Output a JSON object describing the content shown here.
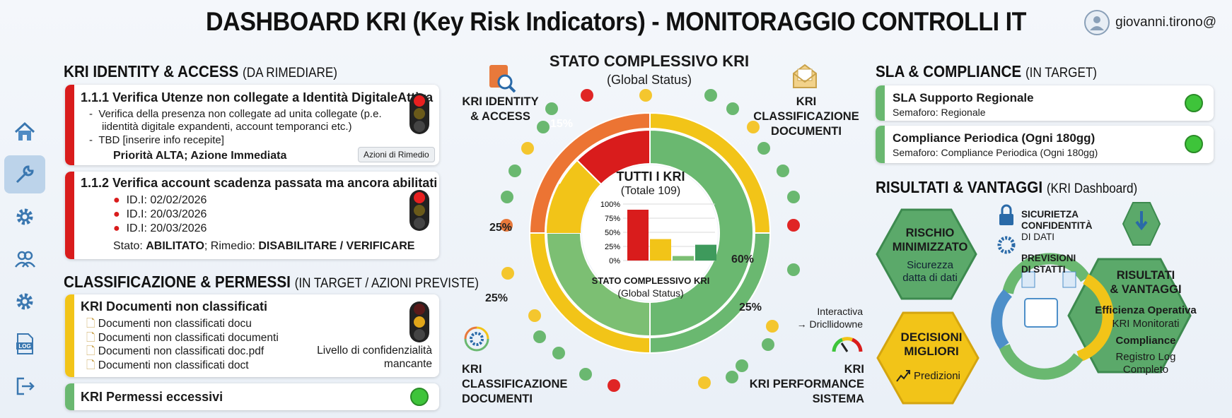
{
  "header": {
    "title": "DASHBOARD KRI (Key Risk Indicators) - MONITORAGGIO CONTROLLI IT",
    "user": "giovanni.tirono@"
  },
  "sidebar": {
    "items": [
      {
        "icon": "home-icon"
      },
      {
        "icon": "wrench-icon",
        "active": true
      },
      {
        "icon": "gear-icon"
      },
      {
        "icon": "users-icon"
      },
      {
        "icon": "gear-icon"
      },
      {
        "icon": "log-icon",
        "label": "LOG"
      },
      {
        "icon": "logout-icon"
      }
    ]
  },
  "identity": {
    "header": "KRI IDENTITY & ACCESS",
    "header_sub": "(DA RIMEDIARE)",
    "card1": {
      "title": "1.1.1 Verifica Utenze non collegate a Identità DigitaleAttiva",
      "b1a": "Verifica della presenza non collegate ad unita collegate (p.e.",
      "b1b": "iidentità digitale expandenti, account temporanci etc.)",
      "b2": "TBD [inserire info recepite]",
      "priority": "Priorità ALTA; Azione Immediata",
      "button": "Azioni di Rimedio"
    },
    "card2": {
      "title": "1.1.2 Verifica account scadenza passata ma ancora abilitati",
      "items": [
        "ID.I: 02/02/2026",
        "ID.I: 20/03/2026",
        "ID.I: 20/03/2026"
      ],
      "stato_label": "Stato: ",
      "stato_value": "ABILITATO",
      "rimedio_label": "; Rimedio: ",
      "rimedio_value": "DISABILITARE / VERIFICARE"
    }
  },
  "classificazione": {
    "header": "CLASSIFICAZIONE & PERMESSI",
    "header_sub": "(IN TARGET / AZIONI PREVISTE)",
    "card1": {
      "title": "KRI Documenti non classificati",
      "docs": [
        "Documenti non classificati docu",
        "Documenti non classificati documenti",
        "Documenti non classificati doc.pdf",
        "Documenti non classificati doct"
      ],
      "note1": "Livello di confidenzialità",
      "note2": "mancante"
    },
    "card2": {
      "title": "KRI Permessi eccessivi"
    }
  },
  "center": {
    "title": "STATO COMPLESSIVO KRI",
    "subtitle": "(Global Status)",
    "label_tl1": "KRI IDENTITY",
    "label_tl2": "& ACCESS",
    "label_tr1": "KRI CLASSIFICAZIONE",
    "label_tr2": "DOCUMENTI",
    "label_bl1": "KRI",
    "label_bl2": "CLASSIFICAZIONE",
    "label_bl3": "DOCUMENTI",
    "label_br1": "KRI",
    "label_br2": "KRI PERFORMANCE",
    "label_br3": "SISTEMA",
    "interactive1": "Interactiva",
    "interactive2": "→ Dricllidowne",
    "inner_title": "TUTTI I KRI",
    "inner_sub": "(Totale 109)",
    "inner_bottom": "STATO COMPLESSIVO KRI",
    "inner_bottom_sub": "(Global Status)",
    "pct_15": "15%",
    "pct_25a": "25%",
    "pct_25b": "25%",
    "pct_60": "60%",
    "pct_25c": "25%"
  },
  "chart_data": {
    "type": "bar",
    "categories": [
      "",
      "",
      "",
      ""
    ],
    "values": [
      90,
      38,
      8,
      28
    ],
    "colors": [
      "#d91c1c",
      "#f2c418",
      "#7cbf73",
      "#3e9a5c"
    ],
    "yticks": [
      "0%",
      "25%",
      "50%",
      "75%",
      "100%"
    ],
    "ylim": [
      0,
      100
    ]
  },
  "sla": {
    "header": "SLA & COMPLIANCE",
    "header_sub": "(IN TARGET)",
    "card1_title": "SLA Supporto Regionale",
    "card1_sub": "Semaforo: Regionale",
    "card2_title": "Compliance Periodica (Ogni 180gg)",
    "card2_sub": "Semaforo: Compliance Periodica  (Ogni 180gg)"
  },
  "risultati": {
    "header": "RISULTATI & VANTAGGI",
    "header_sub": "(KRI Dashboard)",
    "rischio1": "RISCHIO",
    "rischio2": "MINIMIZZATO",
    "rischio_s1": "Sicurezza",
    "rischio_s2": "datta di dati",
    "sicurezza1": "SICURIETZA",
    "sicurezza2": "CONFIDENTITÀ",
    "sicurezza3": "DI DATI",
    "previsioni1": "PREVISIONI",
    "previsioni2": "DI STATTI",
    "decisioni1": "DECISIONI",
    "decisioni2": "MIGLIORI",
    "predizioni": "Predizioni",
    "ris1": "RISULTATI",
    "ris2": "& VANTAGGI",
    "eff": "Efficienza Operativa",
    "kri_mon": "KRI Monitorati",
    "compliance": "Compliance",
    "reg1": "Registro Log",
    "reg2": "Completo"
  }
}
